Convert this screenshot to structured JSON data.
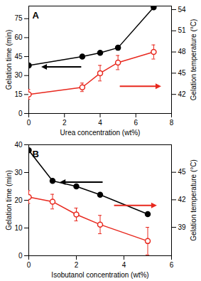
{
  "chart_data": [
    {
      "type": "line",
      "title": "A",
      "xlabel": "Urea concentration (wt%)",
      "ylabel": "Gelation time (min)",
      "y2label": "Gelation temperature (°C)",
      "x": [
        0,
        3,
        4,
        5,
        7
      ],
      "xlim": [
        0,
        8
      ],
      "xticks": [
        0,
        2,
        4,
        6,
        8
      ],
      "ylim": [
        0,
        85
      ],
      "yticks": [
        0,
        15,
        30,
        45,
        60,
        75
      ],
      "y2lim": [
        39.3,
        54.5
      ],
      "y2ticks": [
        42,
        45,
        48,
        51,
        54
      ],
      "series": [
        {
          "color": "#000000",
          "marker": "circle",
          "values": [
            38,
            45,
            48,
            52,
            84
          ]
        },
        {
          "color": "#e8281e",
          "marker": "circle_open",
          "axis": "y2",
          "values": [
            42.0,
            43.0,
            45.0,
            46.5,
            48.0
          ],
          "errors": [
            0.7,
            0.6,
            1.1,
            1.0,
            1.0
          ]
        }
      ]
    },
    {
      "type": "line",
      "title": "B",
      "xlabel": "Isobutanol concentration (wt%)",
      "ylabel": "Gelation time (min)",
      "y2label": "Gelation temperature (°C)",
      "x": [
        0,
        1,
        2,
        3,
        5
      ],
      "xlim": [
        0,
        6
      ],
      "xticks": [
        0,
        2,
        4,
        6
      ],
      "ylim": [
        0,
        40
      ],
      "yticks": [
        0,
        10,
        20,
        30,
        40
      ],
      "y2lim": [
        35.9,
        48
      ],
      "y2ticks": [
        39,
        42,
        45
      ],
      "series": [
        {
          "color": "#000000",
          "marker": "circle",
          "values": [
            38,
            27,
            25,
            22,
            15
          ]
        },
        {
          "color": "#e8281e",
          "marker": "circle_open",
          "axis": "y2",
          "values": [
            42.3,
            41.8,
            40.4,
            39.3,
            37.5
          ],
          "errors": [
            0.7,
            0.8,
            0.7,
            1.0,
            1.5
          ]
        }
      ]
    }
  ]
}
